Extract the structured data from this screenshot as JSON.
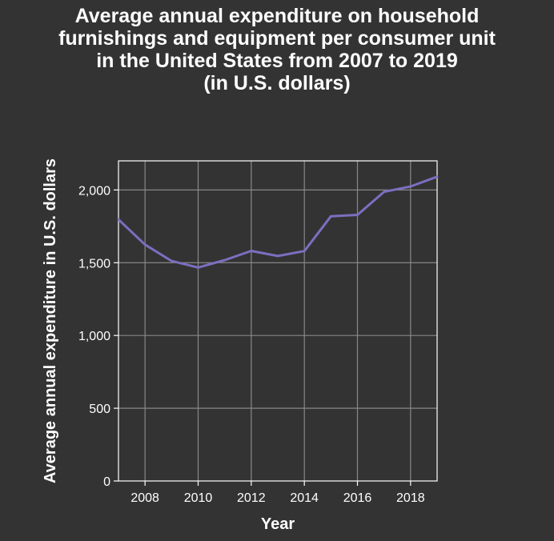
{
  "chart_data": {
    "type": "line",
    "title": "Average annual expenditure on household furnishings and equipment per consumer unit in the United States from 2007 to 2019 (in U.S. dollars)",
    "xlabel": "Year",
    "ylabel": "Average annual expenditure in U.S. dollars",
    "xlim": [
      2007,
      2019
    ],
    "ylim": [
      0,
      2200
    ],
    "x_ticks": [
      2008,
      2010,
      2012,
      2014,
      2016,
      2018
    ],
    "x_tick_labels": [
      "2008",
      "2010",
      "2012",
      "2014",
      "2016",
      "2018"
    ],
    "y_ticks": [
      0,
      500,
      1000,
      1500,
      2000
    ],
    "y_tick_labels": [
      "0",
      "500",
      "1,000",
      "1,500",
      "2,000"
    ],
    "grid": true,
    "legend": "none",
    "series": [
      {
        "x": [
          2007,
          2008,
          2009,
          2010,
          2011,
          2012,
          2013,
          2014,
          2015,
          2016,
          2017,
          2018,
          2019
        ],
        "values": [
          1797,
          1624,
          1512,
          1467,
          1518,
          1581,
          1546,
          1580,
          1819,
          1829,
          1987,
          2024,
          2091
        ],
        "color": "#7b6fc0"
      }
    ],
    "colors": {
      "background": "#333333",
      "grid": "#888888",
      "axis": "#ffffff",
      "text": "#ffffff"
    }
  }
}
